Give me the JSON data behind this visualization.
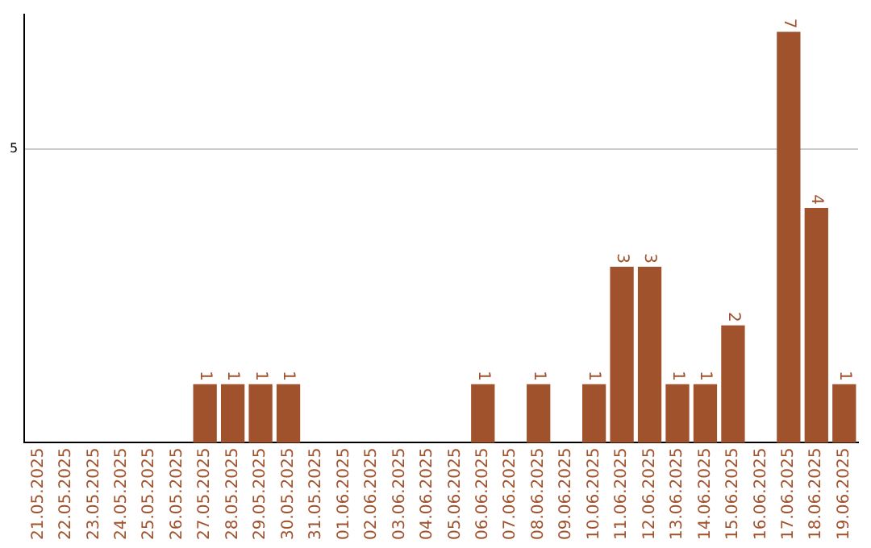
{
  "chart_data": {
    "type": "bar",
    "categories": [
      "21.05.2025",
      "22.05.2025",
      "23.05.2025",
      "24.05.2025",
      "25.05.2025",
      "26.05.2025",
      "27.05.2025",
      "28.05.2025",
      "29.05.2025",
      "30.05.2025",
      "31.05.2025",
      "01.06.2025",
      "02.06.2025",
      "03.06.2025",
      "04.06.2025",
      "05.06.2025",
      "06.06.2025",
      "07.06.2025",
      "08.06.2025",
      "09.06.2025",
      "10.06.2025",
      "11.06.2025",
      "12.06.2025",
      "13.06.2025",
      "14.06.2025",
      "15.06.2025",
      "16.06.2025",
      "17.06.2025",
      "18.06.2025",
      "19.06.2025"
    ],
    "values": [
      0,
      0,
      0,
      0,
      0,
      0,
      1,
      1,
      1,
      1,
      0,
      0,
      0,
      0,
      0,
      0,
      1,
      0,
      1,
      0,
      1,
      3,
      3,
      1,
      1,
      2,
      0,
      7,
      4,
      1
    ],
    "value_labels": [
      null,
      null,
      null,
      null,
      null,
      null,
      "1",
      "1",
      "1",
      "1",
      null,
      null,
      null,
      null,
      null,
      null,
      "1",
      null,
      "1",
      null,
      "1",
      "3",
      "3",
      "1",
      "1",
      "2",
      null,
      "7",
      "4",
      "1"
    ],
    "color": "#a0522d",
    "ylim": [
      0,
      7.3
    ],
    "yticks": [
      5
    ],
    "grid": "y"
  }
}
